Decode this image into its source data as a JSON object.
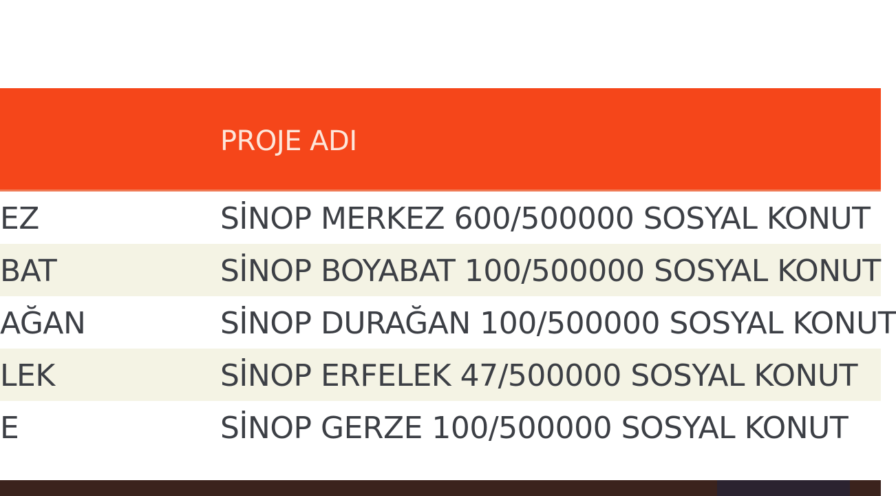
{
  "table": {
    "header": {
      "col2": "PROJE ADI"
    },
    "rows": [
      {
        "district": "EZ",
        "project": "SİNOP MERKEZ 600/500000 SOSYAL KONUT"
      },
      {
        "district": "BAT",
        "project": "SİNOP BOYABAT 100/500000 SOSYAL KONUT"
      },
      {
        "district": "AĞAN",
        "project": "SİNOP DURAĞAN 100/500000 SOSYAL KONUT"
      },
      {
        "district": "LEK",
        "project": "SİNOP ERFELEK 47/500000 SOSYAL KONUT"
      },
      {
        "district": "E",
        "project": "SİNOP GERZE 100/500000 SOSYAL KONUT"
      }
    ]
  },
  "colors": {
    "header_bg": "#f5461a",
    "stripe": "#f4f3e4",
    "footer": "#3b231d"
  }
}
